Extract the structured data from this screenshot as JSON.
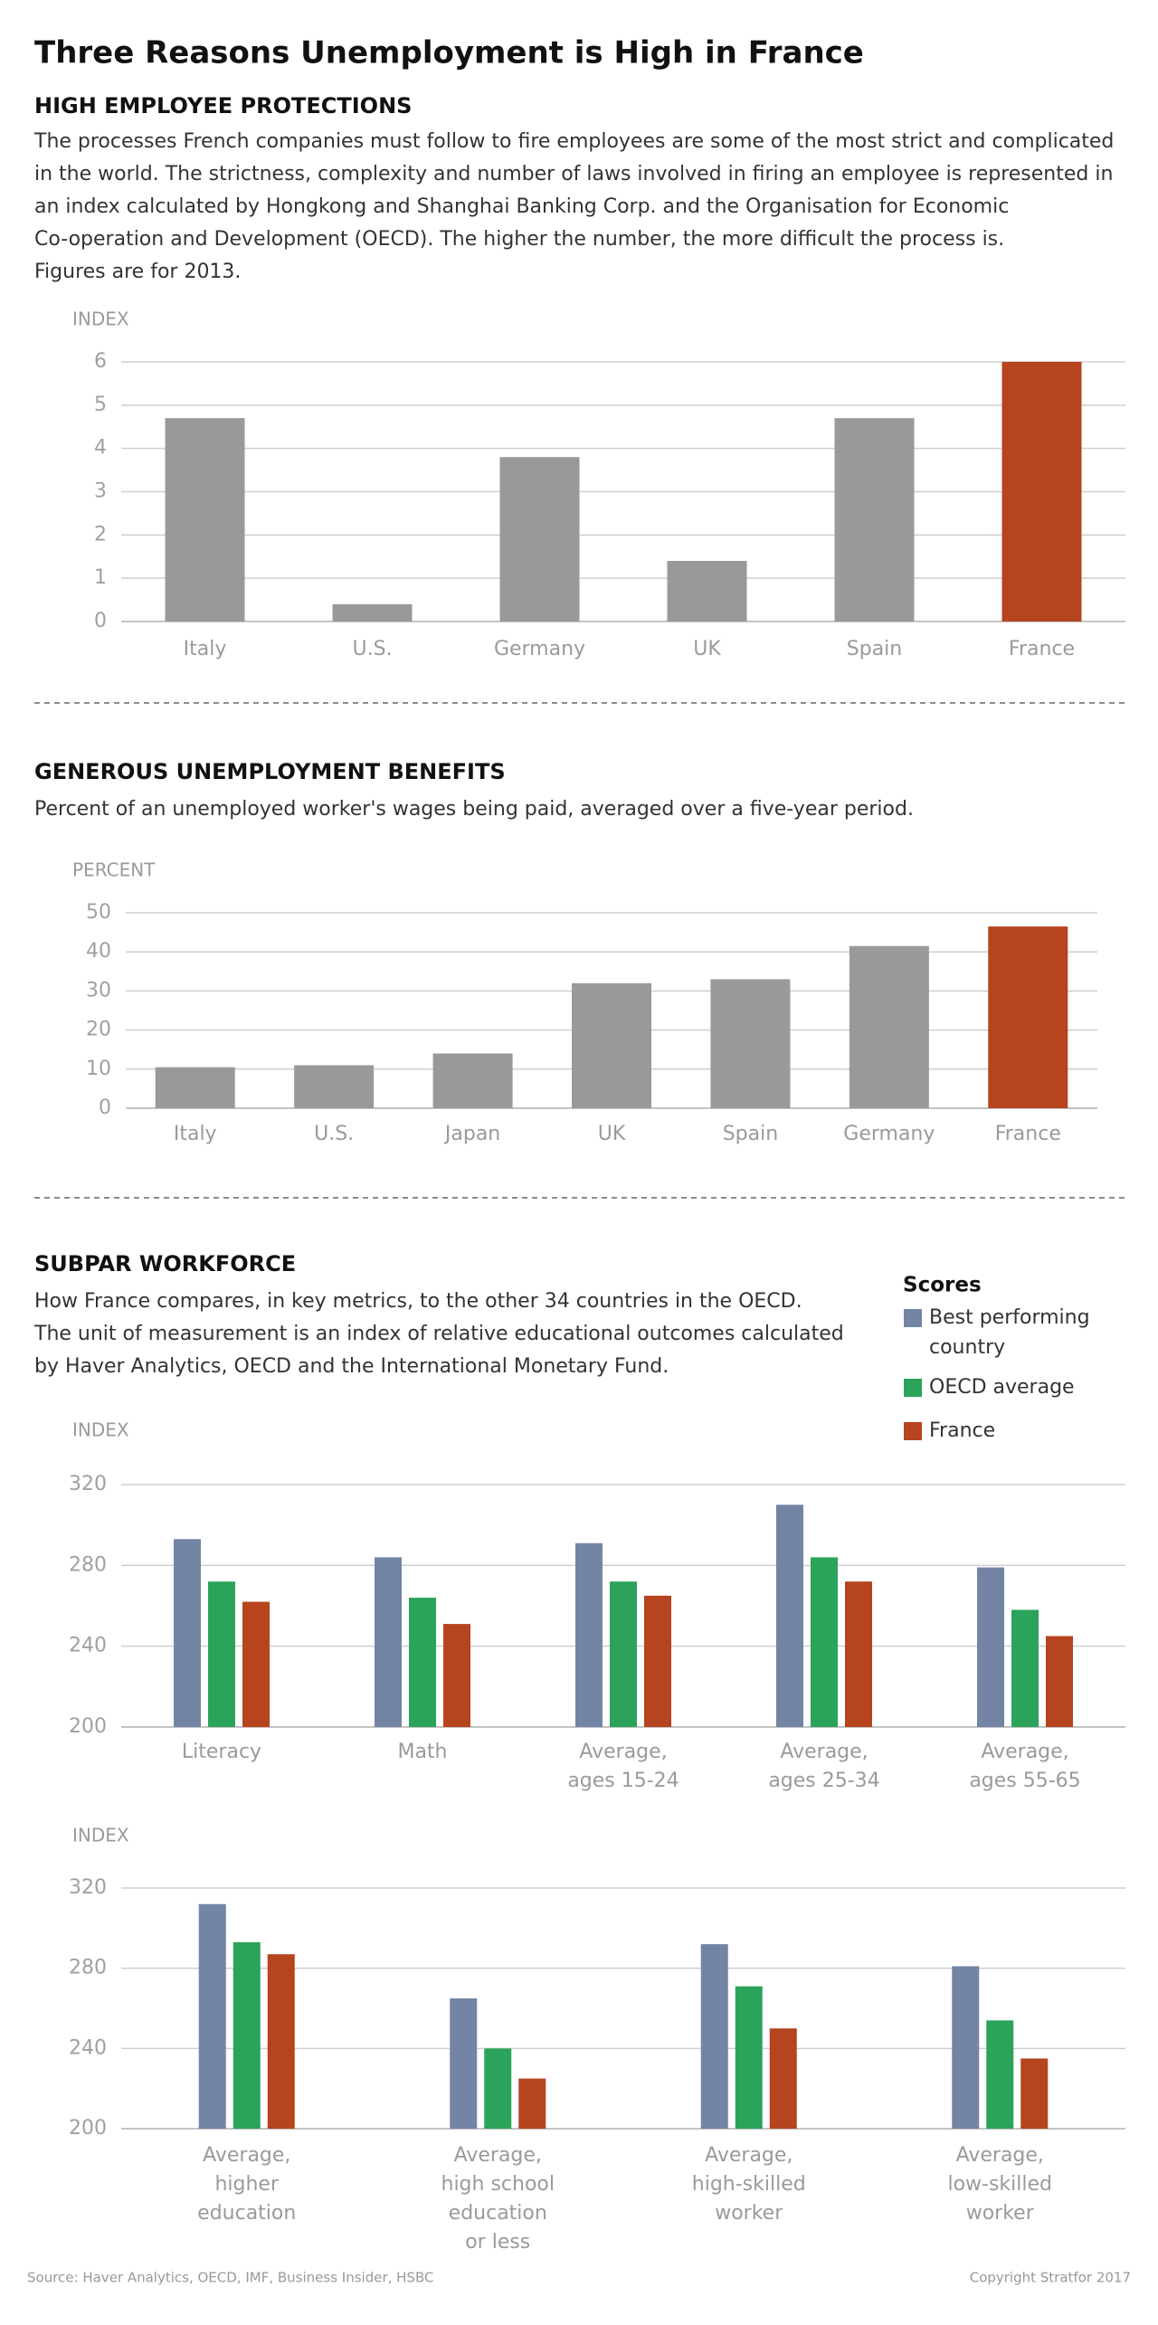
{
  "title": "Three Reasons Unemployment is High in France",
  "source": "Source: Haver Analytics, OECD, IMF, Business Insider, HSBC",
  "copyright": "Copyright Stratfor 2017",
  "chart_data": [
    {
      "type": "bar",
      "title": "HIGH EMPLOYEE PROTECTIONS",
      "subtitle": [
        "The processes French companies must follow to fire employees are some of the most strict and complicated",
        "in the world. The strictness, complexity and number of laws involved in firing an employee is represented in",
        "an index calculated by Hongkong and Shanghai Banking Corp. and the Organisation for Economic",
        "Co-operation and Development (OECD). The higher the number, the more difficult the process is.",
        "Figures are for 2013."
      ],
      "y_label": "INDEX",
      "categories": [
        "Italy",
        "U.S.",
        "Germany",
        "UK",
        "Spain",
        "France"
      ],
      "values": [
        4.7,
        0.4,
        3.8,
        1.4,
        4.7,
        6.0
      ],
      "colors": [
        "#999999",
        "#999999",
        "#999999",
        "#999999",
        "#999999",
        "#b5441f"
      ],
      "ylim": [
        0,
        6
      ],
      "yticks": [
        0,
        1,
        2,
        3,
        4,
        5,
        6
      ],
      "grid": true
    },
    {
      "type": "bar",
      "title": "GENEROUS UNEMPLOYMENT BENEFITS",
      "subtitle": [
        "Percent of an unemployed worker's wages being paid, averaged over a five-year period."
      ],
      "y_label": "PERCENT",
      "categories": [
        "Italy",
        "U.S.",
        "Japan",
        "UK",
        "Spain",
        "Germany",
        "France"
      ],
      "values": [
        10.5,
        11,
        14,
        32,
        33,
        41.5,
        46.5
      ],
      "colors": [
        "#999999",
        "#999999",
        "#999999",
        "#999999",
        "#999999",
        "#999999",
        "#b5441f"
      ],
      "ylim": [
        0,
        50
      ],
      "yticks": [
        0,
        10,
        20,
        30,
        40,
        50
      ],
      "grid": true
    },
    {
      "type": "bar",
      "title": "SUBPAR WORKFORCE",
      "subtitle": [
        "How France compares, in key metrics, to the other 34 countries in the OECD.",
        "The unit of measurement is an index of relative educational outcomes calculated",
        "by Haver Analytics, OECD and the International Monetary Fund."
      ],
      "y_label": "INDEX",
      "legend_title": "Scores",
      "categories": [
        [
          "Literacy"
        ],
        [
          "Math"
        ],
        [
          "Average,",
          "ages 15-24"
        ],
        [
          "Average,",
          "ages 25-34"
        ],
        [
          "Average,",
          "ages 55-65"
        ]
      ],
      "series": [
        {
          "name": "Best performing country",
          "color": "#7384a5",
          "values": [
            293,
            284,
            291,
            310,
            279
          ]
        },
        {
          "name": "OECD average",
          "color": "#2ba35a",
          "values": [
            272,
            264,
            272,
            284,
            258
          ]
        },
        {
          "name": "France",
          "color": "#b5441f",
          "values": [
            262,
            251,
            265,
            272,
            245
          ]
        }
      ],
      "ylim": [
        200,
        320
      ],
      "yticks": [
        200,
        240,
        280,
        320
      ],
      "grid": true
    },
    {
      "type": "bar",
      "y_label": "INDEX",
      "categories": [
        [
          "Average,",
          "higher",
          "education"
        ],
        [
          "Average,",
          "high school",
          "education",
          "or less"
        ],
        [
          "Average,",
          "high-skilled",
          "worker"
        ],
        [
          "Average,",
          "low-skilled",
          "worker"
        ]
      ],
      "series": [
        {
          "color": "#7384a5",
          "values": [
            312,
            265,
            292,
            281
          ]
        },
        {
          "color": "#2ba35a",
          "values": [
            293,
            240,
            271,
            254
          ]
        },
        {
          "color": "#b5441f",
          "values": [
            287,
            225,
            250,
            235
          ]
        }
      ],
      "ylim": [
        200,
        320
      ],
      "yticks": [
        200,
        240,
        280,
        320
      ],
      "grid": true
    }
  ]
}
